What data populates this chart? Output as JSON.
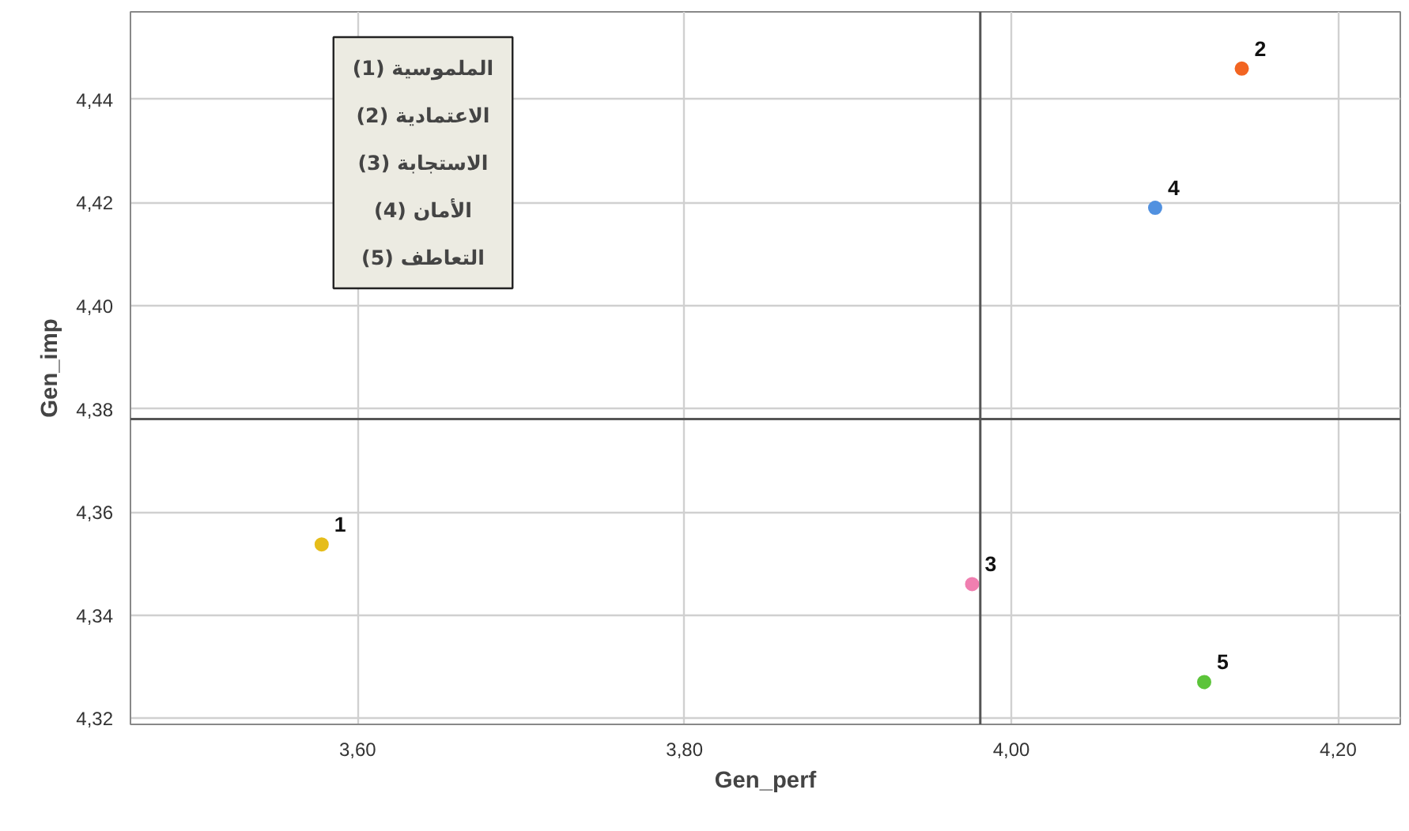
{
  "chart_data": {
    "type": "scatter",
    "xlabel": "Gen_perf",
    "ylabel": "Gen_imp",
    "xlim": [
      3.461,
      4.238
    ],
    "ylim": [
      4.3188,
      4.457
    ],
    "xticks": [
      {
        "value": 3.6,
        "label": "3,60"
      },
      {
        "value": 3.8,
        "label": "3,80"
      },
      {
        "value": 4.0,
        "label": "4,00"
      },
      {
        "value": 4.2,
        "label": "4,20"
      }
    ],
    "yticks": [
      {
        "value": 4.32,
        "label": "4,32"
      },
      {
        "value": 4.34,
        "label": "4,34"
      },
      {
        "value": 4.36,
        "label": "4,36"
      },
      {
        "value": 4.38,
        "label": "4,38"
      },
      {
        "value": 4.4,
        "label": "4,40"
      },
      {
        "value": 4.42,
        "label": "4,42"
      },
      {
        "value": 4.44,
        "label": "4,44"
      }
    ],
    "grid": true,
    "marker": "circle",
    "series": [
      {
        "name": "1",
        "color": "#e6bd1a",
        "x": [
          3.578
        ],
        "values": [
          4.3537
        ]
      },
      {
        "name": "2",
        "color": "#f26522",
        "x": [
          4.141
        ],
        "values": [
          4.446
        ]
      },
      {
        "name": "3",
        "color": "#f07fb0",
        "x": [
          3.976
        ],
        "values": [
          4.346
        ]
      },
      {
        "name": "4",
        "color": "#5191e0",
        "x": [
          4.088
        ],
        "values": [
          4.419
        ]
      },
      {
        "name": "5",
        "color": "#5cc43a",
        "x": [
          4.118
        ],
        "values": [
          4.327
        ]
      }
    ],
    "ref_lines": [
      {
        "axis": "x",
        "value": 3.981,
        "color": "#555555"
      },
      {
        "axis": "y",
        "value": 4.378,
        "color": "#555555"
      }
    ],
    "annotations": [
      "الملموسية (1)",
      "الاعتمادية (2)",
      "الاستجابة (3)",
      "الأمان (4)",
      "التعاطف (5)"
    ]
  }
}
